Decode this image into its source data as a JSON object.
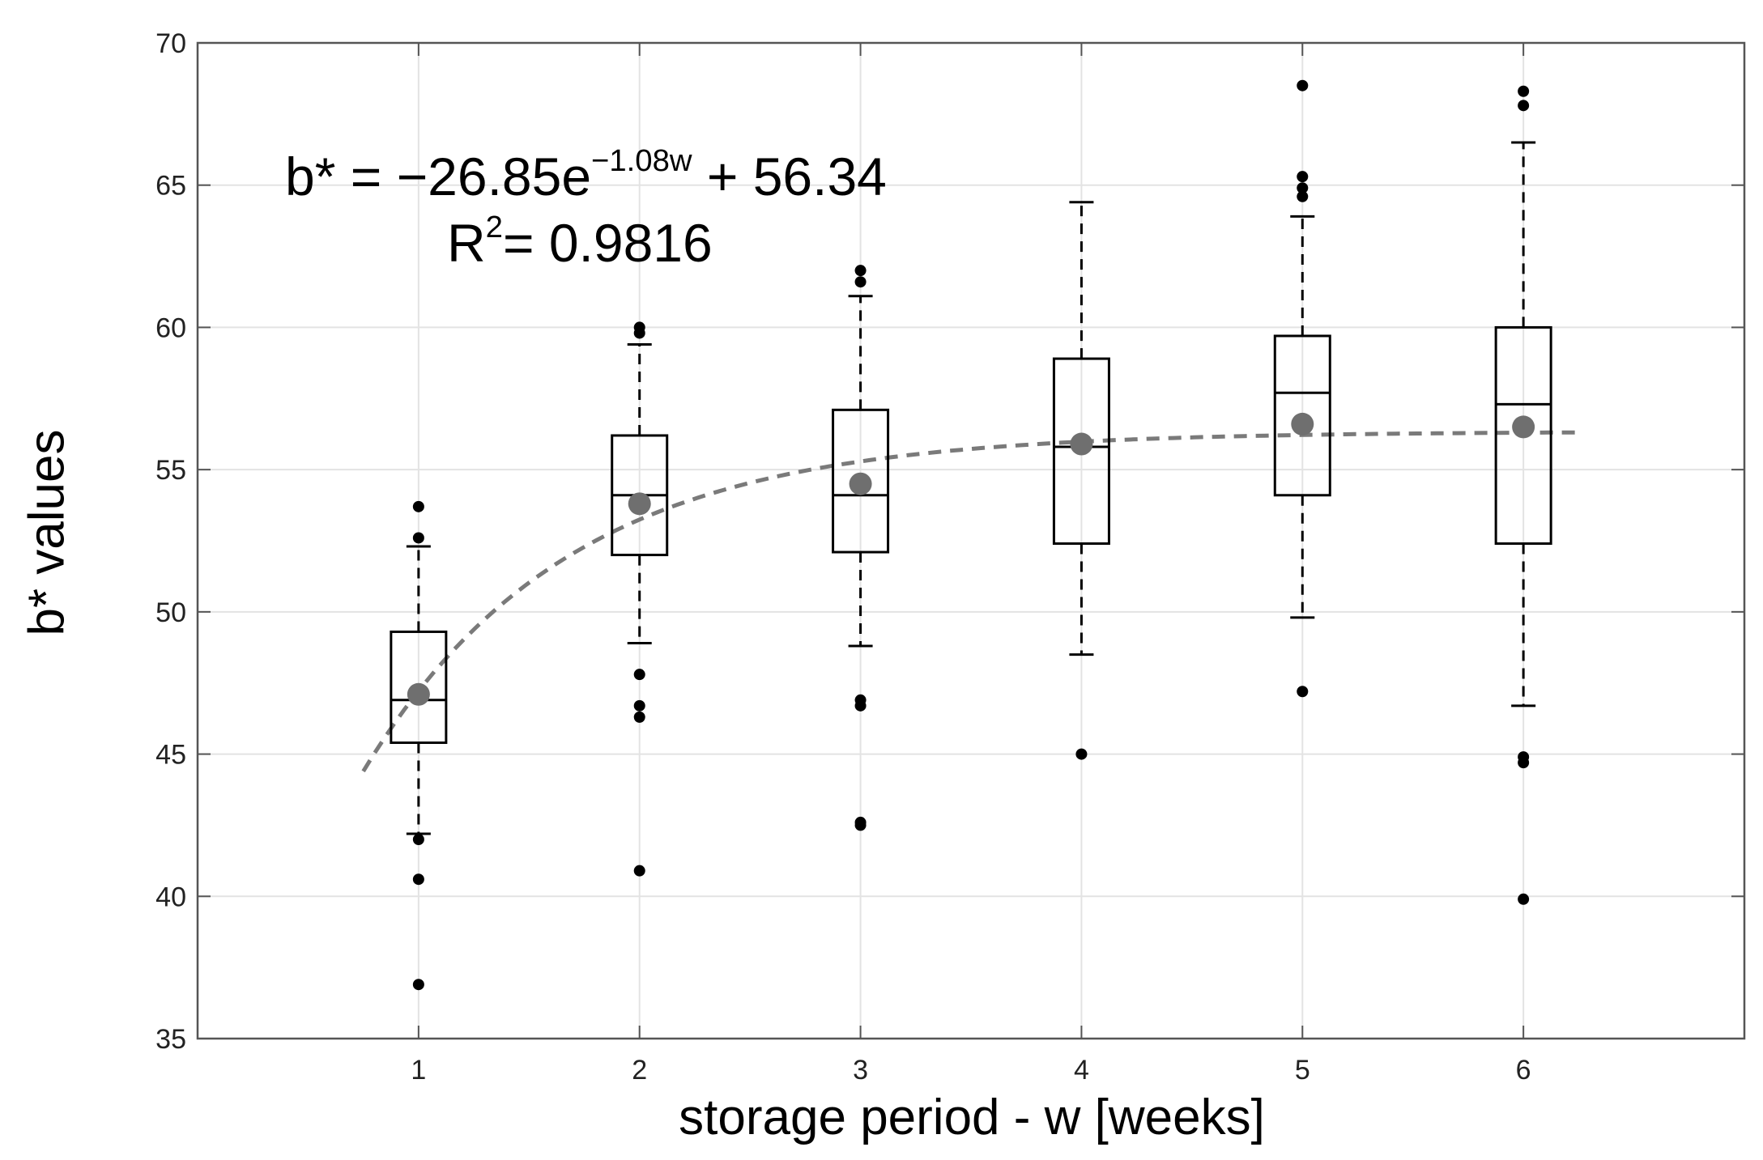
{
  "chart_data": {
    "type": "box",
    "title": "",
    "xlabel": "storage period - w [weeks]",
    "ylabel": "b* values",
    "xlim": [
      0,
      7
    ],
    "ylim": [
      35,
      70
    ],
    "xticks": [
      1,
      2,
      3,
      4,
      5,
      6
    ],
    "yticks": [
      35,
      40,
      45,
      50,
      55,
      60,
      65,
      70
    ],
    "grid": true,
    "equation": {
      "lhs": "b* = ",
      "coef": "−26.85e",
      "exp": "−1.08w",
      "const": " + 56.34",
      "r2_prefix": "R",
      "r2_exp": "2",
      "r2_value": "= 0.9816"
    },
    "fit": {
      "a": -26.85,
      "k": -1.08,
      "c": 56.34,
      "x_range": [
        0.75,
        6.25
      ],
      "color": "#7a7a7a",
      "style": "dashed"
    },
    "boxes": [
      {
        "week": 1,
        "q1": 45.4,
        "median": 46.9,
        "q3": 49.3,
        "whisker_low": 42.2,
        "whisker_high": 52.3,
        "mean": 47.1,
        "outliers": [
          53.7,
          52.6,
          42.0,
          40.6,
          36.9
        ]
      },
      {
        "week": 2,
        "q1": 52.0,
        "median": 54.1,
        "q3": 56.2,
        "whisker_low": 48.9,
        "whisker_high": 59.4,
        "mean": 53.8,
        "outliers": [
          60.0,
          59.8,
          47.8,
          46.7,
          46.3,
          40.9
        ]
      },
      {
        "week": 3,
        "q1": 52.1,
        "median": 54.1,
        "q3": 57.1,
        "whisker_low": 48.8,
        "whisker_high": 61.1,
        "mean": 54.5,
        "outliers": [
          62.0,
          61.6,
          46.9,
          46.7,
          42.6,
          42.5
        ]
      },
      {
        "week": 4,
        "q1": 52.4,
        "median": 55.8,
        "q3": 58.9,
        "whisker_low": 48.5,
        "whisker_high": 64.4,
        "mean": 55.9,
        "outliers": [
          45.0
        ]
      },
      {
        "week": 5,
        "q1": 54.1,
        "median": 57.7,
        "q3": 59.7,
        "whisker_low": 49.8,
        "whisker_high": 63.9,
        "mean": 56.6,
        "outliers": [
          68.5,
          65.3,
          64.9,
          64.6,
          47.2
        ]
      },
      {
        "week": 6,
        "q1": 52.4,
        "median": 57.3,
        "q3": 60.0,
        "whisker_low": 46.7,
        "whisker_high": 66.5,
        "mean": 56.5,
        "outliers": [
          68.3,
          67.8,
          44.9,
          44.7,
          39.9
        ]
      }
    ],
    "colors": {
      "box": "#000000",
      "mean": "#6f6f6f",
      "outlier": "#000000",
      "grid": "#e3e3e3",
      "axis": "#555555",
      "fit": "#7a7a7a"
    }
  }
}
